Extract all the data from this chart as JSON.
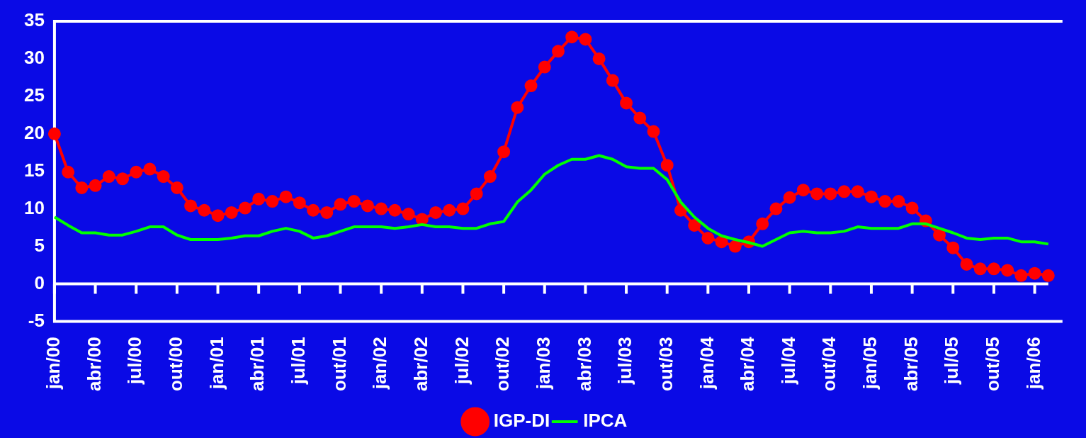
{
  "chart_data": {
    "type": "line",
    "categories": [
      "jan/00",
      null,
      null,
      "abr/00",
      null,
      null,
      "jul/00",
      null,
      null,
      "out/00",
      null,
      null,
      "jan/01",
      null,
      null,
      "abr/01",
      null,
      null,
      "jul/01",
      null,
      null,
      "out/01",
      null,
      null,
      "jan/02",
      null,
      null,
      "abr/02",
      null,
      null,
      "jul/02",
      null,
      null,
      "out/02",
      null,
      null,
      "jan/03",
      null,
      null,
      "abr/03",
      null,
      null,
      "jul/03",
      null,
      null,
      "out/03",
      null,
      null,
      "jan/04",
      null,
      null,
      "abr/04",
      null,
      null,
      "jul/04",
      null,
      null,
      "out/04",
      null,
      null,
      "jan/05",
      null,
      null,
      "abr/05",
      null,
      null,
      "jul/05",
      null,
      null,
      "out/05",
      null,
      null,
      "jan/06",
      null
    ],
    "series": [
      {
        "name": "IGP-DI",
        "color": "#ff0000",
        "marker": "circle",
        "values": [
          20,
          14.9,
          12.8,
          13.1,
          14.3,
          14,
          14.9,
          15.3,
          14.3,
          12.8,
          10.4,
          9.8,
          9.1,
          9.5,
          10.1,
          11.3,
          11,
          11.6,
          10.8,
          9.8,
          9.5,
          10.6,
          11,
          10.4,
          10,
          9.8,
          9.3,
          8.6,
          9.5,
          9.8,
          10,
          12,
          14.3,
          17.6,
          23.5,
          26.4,
          28.9,
          31,
          32.9,
          32.6,
          30,
          27.1,
          24.1,
          22.1,
          20.3,
          15.8,
          9.8,
          7.8,
          6.1,
          5.6,
          5,
          5.6,
          8,
          10,
          11.5,
          12.5,
          12,
          12,
          12.3,
          12.3,
          11.6,
          11,
          11,
          10.1,
          8.4,
          6.5,
          4.8,
          2.6,
          2,
          2,
          1.8,
          1.1,
          1.4,
          1.1
        ]
      },
      {
        "name": "IPCA",
        "color": "#00ff00",
        "marker": "none",
        "values": [
          8.9,
          7.8,
          6.8,
          6.8,
          6.5,
          6.5,
          7,
          7.6,
          7.6,
          6.5,
          5.9,
          5.9,
          5.9,
          6.1,
          6.4,
          6.4,
          7,
          7.4,
          7,
          6.1,
          6.4,
          7,
          7.6,
          7.6,
          7.6,
          7.4,
          7.6,
          7.9,
          7.6,
          7.6,
          7.4,
          7.4,
          8,
          8.3,
          10.9,
          12.5,
          14.6,
          15.8,
          16.6,
          16.6,
          17.1,
          16.6,
          15.6,
          15.4,
          15.4,
          13.9,
          10.9,
          8.9,
          7.4,
          6.4,
          5.9,
          5.5,
          5,
          5.9,
          6.8,
          7,
          6.8,
          6.8,
          7,
          7.6,
          7.4,
          7.4,
          7.4,
          8,
          8,
          7.4,
          6.8,
          6.1,
          5.9,
          6.1,
          6.1,
          5.6,
          5.6,
          5.3
        ]
      }
    ],
    "ylim": [
      -5,
      35
    ],
    "yticks": [
      -5,
      0,
      5,
      10,
      15,
      20,
      25,
      30,
      35
    ],
    "ref_lines": [
      {
        "axis": "y",
        "value": 0,
        "color": "#ffffff"
      }
    ],
    "grid": false,
    "legend": "bottom"
  }
}
